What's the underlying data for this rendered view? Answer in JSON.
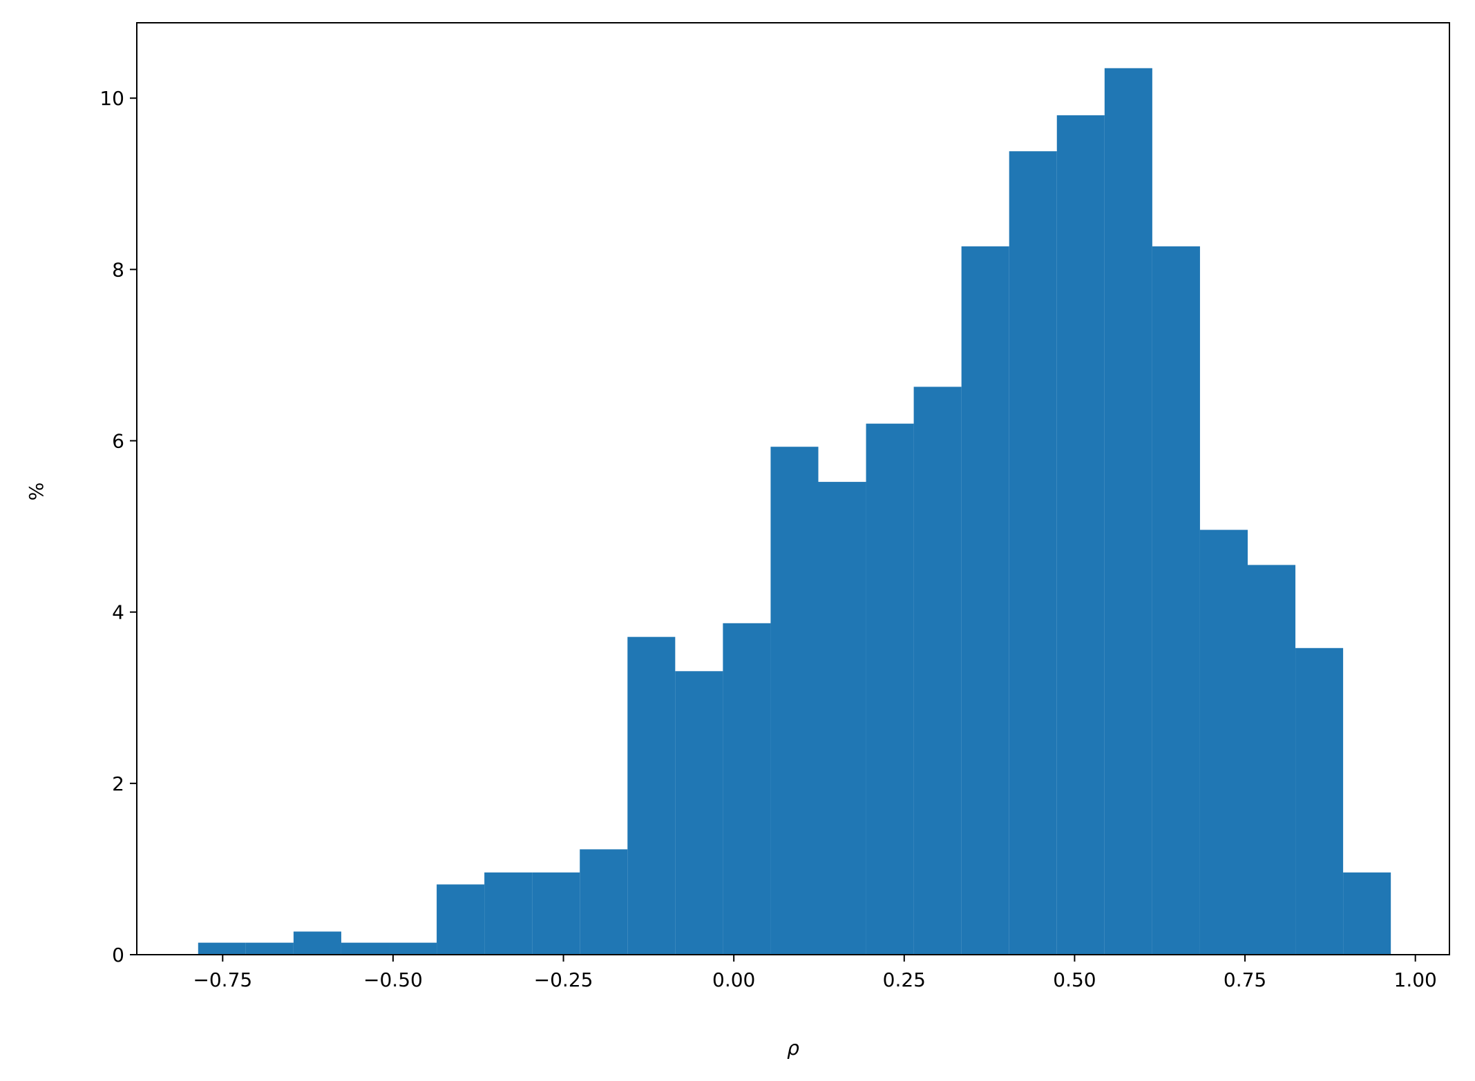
{
  "chart_data": {
    "type": "histogram",
    "xlabel": "ρ",
    "ylabel": "%",
    "color": "#2077b4",
    "bins": [
      -0.786,
      -0.716,
      -0.646,
      -0.576,
      -0.506,
      -0.436,
      -0.366,
      -0.296,
      -0.226,
      -0.156,
      -0.086,
      -0.016,
      0.054,
      0.124,
      0.194,
      0.264,
      0.334,
      0.404,
      0.474,
      0.544,
      0.614,
      0.684,
      0.754,
      0.824,
      0.894,
      0.964
    ],
    "values": [
      0.14,
      0.14,
      0.27,
      0.14,
      0.14,
      0.82,
      0.96,
      0.96,
      1.23,
      3.71,
      3.31,
      3.87,
      5.93,
      5.52,
      6.2,
      6.63,
      8.27,
      9.38,
      9.8,
      10.35,
      8.27,
      4.96,
      4.55,
      3.58,
      0.96
    ],
    "xlim": [
      -0.876,
      1.05
    ],
    "ylim": [
      0,
      10.88
    ],
    "xticks": [
      {
        "value": -0.75,
        "label": "−0.75"
      },
      {
        "value": -0.5,
        "label": "−0.50"
      },
      {
        "value": -0.25,
        "label": "−0.25"
      },
      {
        "value": 0,
        "label": "0.00"
      },
      {
        "value": 0.25,
        "label": "0.25"
      },
      {
        "value": 0.5,
        "label": "0.50"
      },
      {
        "value": 0.75,
        "label": "0.75"
      },
      {
        "value": 1,
        "label": "1.00"
      }
    ],
    "yticks": [
      0,
      2,
      4,
      6,
      8,
      10
    ]
  }
}
